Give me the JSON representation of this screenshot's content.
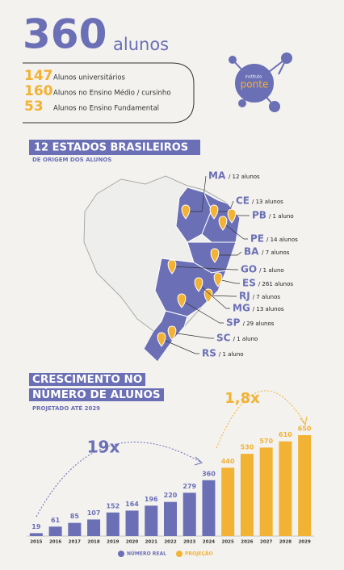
{
  "header": {
    "number": "360",
    "unit": "alunos"
  },
  "breakdown": [
    {
      "value": "147",
      "label": "Alunos universitários"
    },
    {
      "value": "160",
      "label": "Alunos no Ensino Médio / cursinho"
    },
    {
      "value": "53",
      "label": "Alunos no Ensino Fundamental"
    }
  ],
  "logo": {
    "small": "instituto",
    "name": "ponte"
  },
  "map": {
    "title": "12 ESTADOS BRASILEIROS",
    "subtitle": "DE ORIGEM DOS ALUNOS",
    "states": [
      {
        "code": "MA",
        "label": "/ 12 alunos"
      },
      {
        "code": "CE",
        "label": "/ 13 alunos"
      },
      {
        "code": "PB",
        "label": "/ 1 aluno"
      },
      {
        "code": "PE",
        "label": "/ 14 alunos"
      },
      {
        "code": "BA",
        "label": "/ 7 alunos"
      },
      {
        "code": "GO",
        "label": "/ 1 aluno"
      },
      {
        "code": "ES",
        "label": "/ 261 alunos"
      },
      {
        "code": "RJ",
        "label": "/ 7 alunos"
      },
      {
        "code": "MG",
        "label": "/ 13 alunos"
      },
      {
        "code": "SP",
        "label": "/ 29 alunos"
      },
      {
        "code": "SC",
        "label": "/ 1 aluno"
      },
      {
        "code": "RS",
        "label": "/ 1 aluno"
      }
    ]
  },
  "chart_data": {
    "type": "bar",
    "title": "CRESCIMENTO NO NÚMERO DE ALUNOS",
    "subtitle": "PROJETADO ATÉ 2029",
    "categories": [
      "2015",
      "2016",
      "2017",
      "2018",
      "2019",
      "2020",
      "2021",
      "2022",
      "2023",
      "2024",
      "2025",
      "2026",
      "2027",
      "2028",
      "2029"
    ],
    "series": [
      {
        "name": "NÚMERO REAL",
        "color": "#6b6fb5",
        "values": [
          19,
          61,
          85,
          107,
          152,
          164,
          196,
          220,
          279,
          360,
          null,
          null,
          null,
          null,
          null
        ]
      },
      {
        "name": "PROJEÇÃO",
        "color": "#f2b233",
        "values": [
          null,
          null,
          null,
          null,
          null,
          null,
          null,
          null,
          null,
          null,
          440,
          530,
          570,
          610,
          650
        ]
      }
    ],
    "annotations": [
      "19x",
      "1,8x"
    ]
  }
}
